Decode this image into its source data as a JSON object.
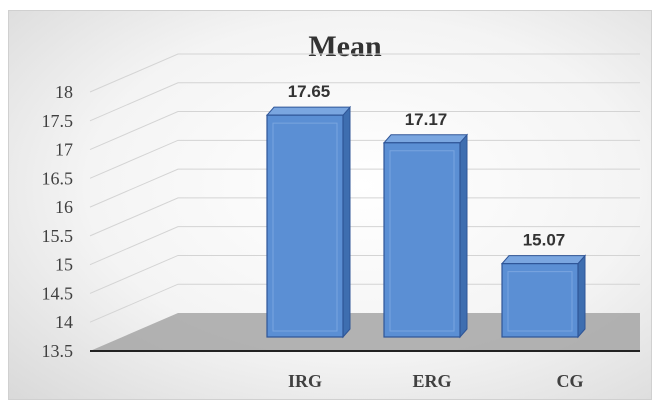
{
  "chart_data": {
    "type": "bar",
    "title": "Mean",
    "categories": [
      "IRG",
      "ERG",
      "CG"
    ],
    "series": [
      {
        "values": [
          17.65,
          17.17,
          15.07
        ]
      }
    ],
    "data_labels": [
      "17.65",
      "17.17",
      "15.07"
    ],
    "yticks": [
      "13.5",
      "14",
      "14.5",
      "15",
      "15.5",
      "16",
      "16.5",
      "17",
      "17.5",
      "18"
    ],
    "ylim": [
      13.5,
      18
    ],
    "xlabel": "",
    "ylabel": "",
    "grid": true,
    "legend": "none",
    "style": "3d-column",
    "colors": {
      "bar_front": "#5b8fd4",
      "bar_side": "#3e6eb0",
      "bar_top": "#7aa6e0",
      "floor": "#a6a6a6",
      "grid": "#d4d4d4"
    }
  }
}
